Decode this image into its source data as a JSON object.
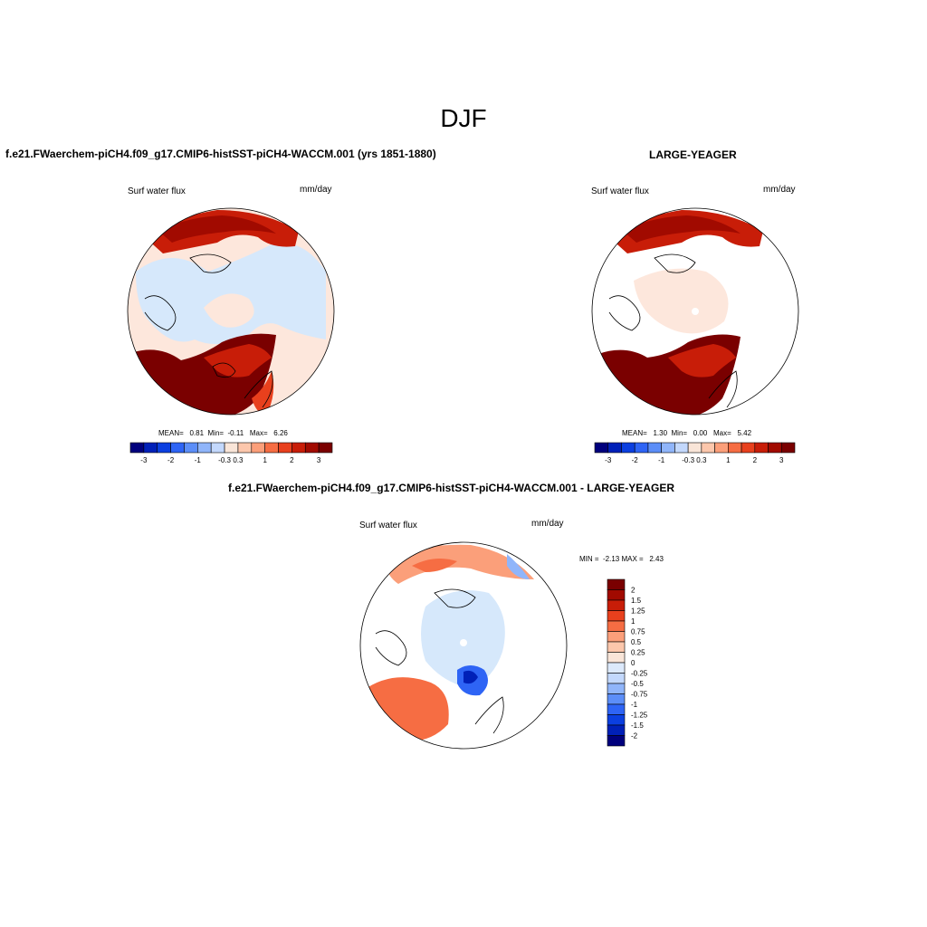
{
  "figure": {
    "season": "DJF",
    "left_title": "f.e21.FWaerchem-piCH4.f09_g17.CMIP6-histSST-piCH4-WACCM.001 (yrs 1851-1880)",
    "right_title": "LARGE-YEAGER",
    "diff_title": "f.e21.FWaerchem-piCH4.f09_g17.CMIP6-histSST-piCH4-WACCM.001 - LARGE-YEAGER"
  },
  "panels": {
    "left": {
      "variable": "Surf water flux",
      "units": "mm/day",
      "mean_label": "MEAN=",
      "mean": "0.81",
      "min_label": "Min=",
      "min": "-0.11",
      "max_label": "Max=",
      "max": "6.26"
    },
    "right": {
      "variable": "Surf water flux",
      "units": "mm/day",
      "mean_label": "MEAN=",
      "mean": "1.30",
      "min_label": "Min=",
      "min": "0.00",
      "max_label": "Max=",
      "max": "5.42"
    },
    "diff": {
      "variable": "Surf water flux",
      "units": "mm/day",
      "minmax": "MIN =  -2.13 MAX =   2.43"
    }
  },
  "colorbars": {
    "top": {
      "colors": [
        "#00007d",
        "#0020b8",
        "#0b3fe0",
        "#2e64f5",
        "#5c8ef8",
        "#90b5fa",
        "#c3d8fc",
        "#f9e5d8",
        "#fcc7ac",
        "#fb9f7a",
        "#f66d43",
        "#e8401d",
        "#c81d08",
        "#a10a00",
        "#7a0000"
      ],
      "labels": [
        "-3",
        "-2",
        "-1",
        "-0.3",
        "0.3",
        "1",
        "2",
        "3"
      ]
    },
    "diff": {
      "colors": [
        "#7a0000",
        "#a10a00",
        "#c81d08",
        "#e8401d",
        "#f66d43",
        "#fb9f7a",
        "#fcc7ac",
        "#f9e5d8",
        "#dce9fb",
        "#c3d8fc",
        "#90b5fa",
        "#5c8ef8",
        "#2e64f5",
        "#0b3fe0",
        "#0020b8",
        "#00007d"
      ],
      "labels": [
        "2",
        "1.5",
        "1.25",
        "1",
        "0.75",
        "0.5",
        "0.25",
        "0",
        "-0.25",
        "-0.5",
        "-0.75",
        "-1",
        "-1.25",
        "-1.5",
        "-2"
      ]
    }
  }
}
